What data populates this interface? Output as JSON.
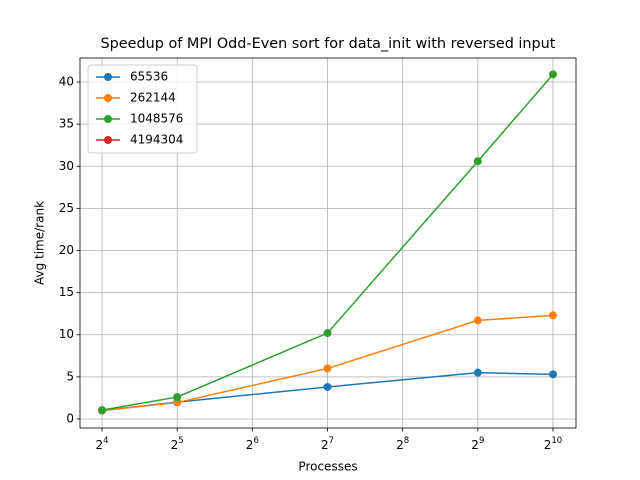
{
  "chart_data": {
    "type": "line",
    "title": "Speedup of MPI Odd-Even sort for data_init with reversed input",
    "xlabel": "Processes",
    "ylabel": "Avg time/rank",
    "x": [
      16,
      32,
      128,
      512,
      1024
    ],
    "series": [
      {
        "name": "65536",
        "color": "#1f77b4",
        "values": [
          1.0,
          2.0,
          3.8,
          5.5,
          5.3
        ]
      },
      {
        "name": "262144",
        "color": "#ff7f0e",
        "values": [
          1.0,
          1.95,
          6.0,
          11.7,
          12.3
        ]
      },
      {
        "name": "1048576",
        "color": "#2ca02c",
        "values": [
          1.05,
          2.6,
          10.2,
          30.6,
          40.9
        ]
      },
      {
        "name": "4194304",
        "color": "#d62728",
        "values": [
          null,
          null,
          null,
          null,
          null
        ]
      }
    ],
    "xscale": "log2",
    "xlim": [
      13.06,
      1266
    ],
    "xticks": [
      {
        "value": 16,
        "label": "2^4"
      },
      {
        "value": 32,
        "label": "2^5"
      },
      {
        "value": 64,
        "label": "2^6"
      },
      {
        "value": 128,
        "label": "2^7"
      },
      {
        "value": 256,
        "label": "2^8"
      },
      {
        "value": 512,
        "label": "2^9"
      },
      {
        "value": 1024,
        "label": "2^10"
      }
    ],
    "ylim": [
      -1.07,
      42.85
    ],
    "yticks": [
      0,
      5,
      10,
      15,
      20,
      25,
      30,
      35,
      40
    ],
    "grid": true,
    "legend": "upper left"
  }
}
